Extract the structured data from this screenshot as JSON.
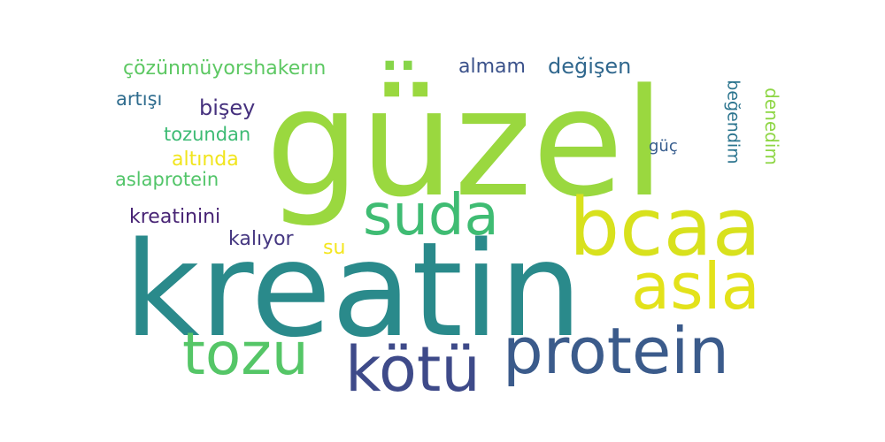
{
  "words": [
    {
      "id": "guzel",
      "text": "güzel",
      "color": "#9ad83f"
    },
    {
      "id": "kreatin",
      "text": "kreatin",
      "color": "#2a8a8b"
    },
    {
      "id": "bcaa",
      "text": "bcaa",
      "color": "#d8e11d"
    },
    {
      "id": "suda",
      "text": "suda",
      "color": "#3fbc73"
    },
    {
      "id": "asla",
      "text": "asla",
      "color": "#e3e21a"
    },
    {
      "id": "protein",
      "text": "protein",
      "color": "#3b5b8b"
    },
    {
      "id": "kotu",
      "text": "kötü",
      "color": "#3e4a89"
    },
    {
      "id": "tozu",
      "text": "tozu",
      "color": "#55c667"
    },
    {
      "id": "cozunmuyor",
      "text": "çözünmüyorshakerın",
      "color": "#5dc863"
    },
    {
      "id": "dots",
      "text": "..",
      "color": "#86d549"
    },
    {
      "id": "almam",
      "text": "almam",
      "color": "#3b528b"
    },
    {
      "id": "degisen",
      "text": "değişen",
      "color": "#31688e"
    },
    {
      "id": "artisi",
      "text": "artışı",
      "color": "#2f6c8e"
    },
    {
      "id": "bisey",
      "text": "bişey",
      "color": "#46317e"
    },
    {
      "id": "tozundan",
      "text": "tozundan",
      "color": "#3dbb74"
    },
    {
      "id": "altinda",
      "text": "altında",
      "color": "#f1e51d"
    },
    {
      "id": "aslaprotein",
      "text": "aslaprotein",
      "color": "#52c569"
    },
    {
      "id": "kreatinini",
      "text": "kreatinini",
      "color": "#482475"
    },
    {
      "id": "kaliyor",
      "text": "kalıyor",
      "color": "#453781"
    },
    {
      "id": "su",
      "text": "su",
      "color": "#f4e61e"
    },
    {
      "id": "guc",
      "text": "güç",
      "color": "#365c8d"
    },
    {
      "id": "begendim",
      "text": "beğendim",
      "color": "#2b748e"
    },
    {
      "id": "denedim",
      "text": "denedim",
      "color": "#8ed645"
    }
  ]
}
